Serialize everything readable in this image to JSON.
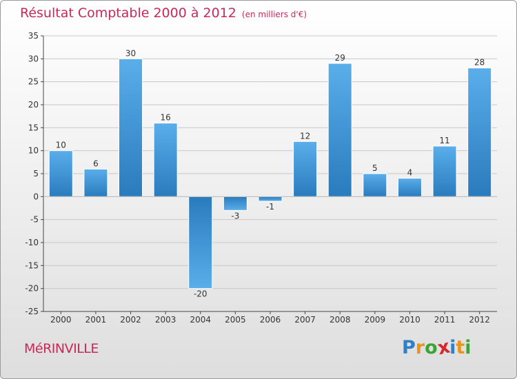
{
  "header": {
    "title": "Résultat Comptable 2000 à 2012",
    "subtitle": "(en milliers d'€)"
  },
  "footer": {
    "commune": "MéRINVILLE",
    "logo_letters": [
      "P",
      "r",
      "o",
      "x",
      "i",
      "t",
      "i"
    ],
    "logo_colors": [
      "#2f7fc9",
      "#e9941b",
      "#3aa535",
      "#d6272f",
      "#2f7fc9",
      "#e9941b",
      "#3aa535"
    ]
  },
  "chart_data": {
    "type": "bar",
    "title": "Résultat Comptable 2000 à 2012",
    "subtitle": "(en milliers d'€)",
    "categories": [
      "2000",
      "2001",
      "2002",
      "2003",
      "2004",
      "2005",
      "2006",
      "2007",
      "2008",
      "2009",
      "2010",
      "2011",
      "2012"
    ],
    "values": [
      10,
      6,
      30,
      16,
      -20,
      -3,
      -1,
      12,
      29,
      5,
      4,
      11,
      28
    ],
    "value_labels": [
      "10",
      "6",
      "30",
      "16",
      "-20",
      "-3",
      "-1",
      "12",
      "29",
      "5",
      "4",
      "11",
      "28"
    ],
    "ylim": [
      -25,
      35
    ],
    "yticks": [
      35,
      30,
      25,
      20,
      15,
      10,
      5,
      0,
      -5,
      -10,
      -15,
      -20,
      -25
    ],
    "ytick_labels": [
      "35",
      "30",
      "25",
      "20",
      "15",
      "10",
      "5",
      "0",
      "-5",
      "-10",
      "-15",
      "-20",
      "-25"
    ],
    "xlabel": "",
    "ylabel": "",
    "grid": true,
    "colors": {
      "bar_light": "#5aaeea",
      "bar_dark": "#2a7bbd",
      "grid": "#c8c8c8",
      "axis": "#444444"
    }
  }
}
